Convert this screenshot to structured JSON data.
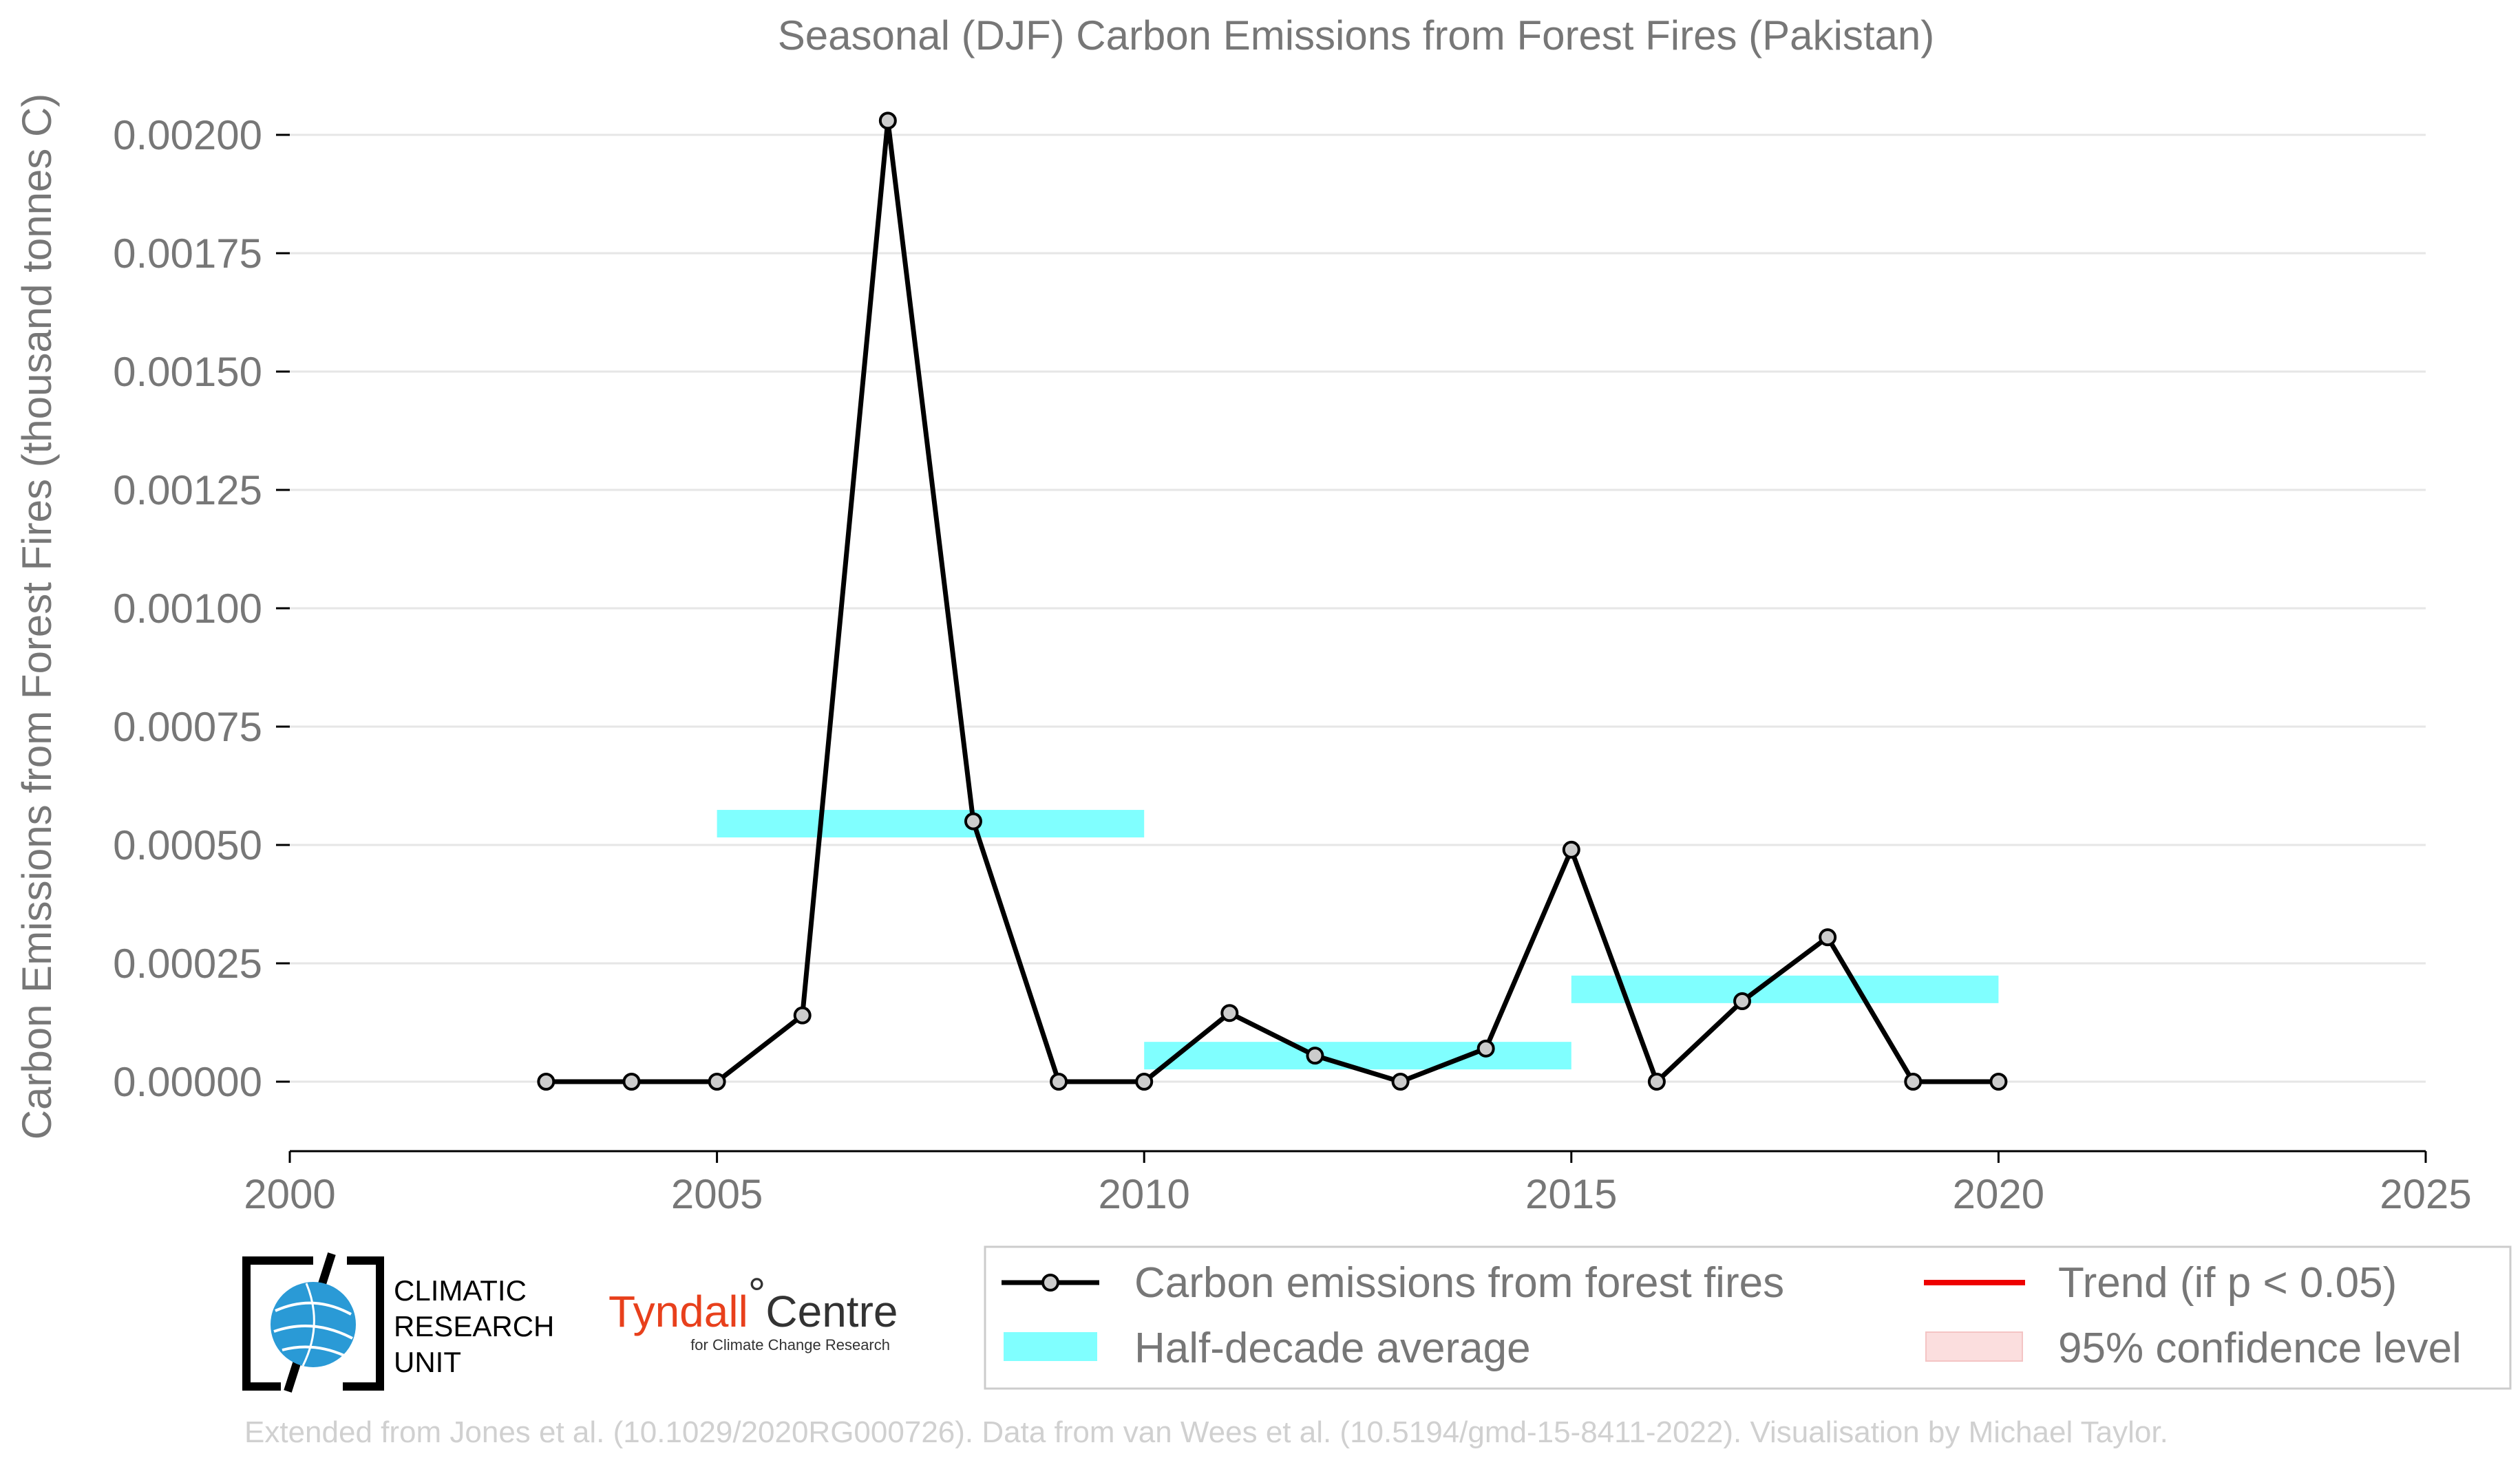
{
  "chart_data": {
    "type": "line",
    "title": "Seasonal (DJF) Carbon Emissions from Forest Fires (Pakistan)",
    "xlabel": "",
    "ylabel": "Carbon Emissions from Forest Fires (thousand tonnes C)",
    "xlim": [
      2000,
      2025
    ],
    "ylim": [
      -0.00016,
      0.00204
    ],
    "xticks": [
      2000,
      2005,
      2010,
      2015,
      2020,
      2025
    ],
    "xtick_labels": [
      "2000",
      "2005",
      "2010",
      "2015",
      "2020",
      "2025"
    ],
    "yticks": [
      0.0,
      0.00025,
      0.0005,
      0.00075,
      0.001,
      0.00125,
      0.0015,
      0.00175,
      0.002
    ],
    "ytick_labels": [
      "0.00000",
      "0.00025",
      "0.00050",
      "0.00075",
      "0.00100",
      "0.00125",
      "0.00150",
      "0.00175",
      "0.00200"
    ],
    "grid": "horizontal",
    "series": [
      {
        "name": "Carbon emissions from forest fires",
        "x": [
          2003,
          2004,
          2005,
          2006,
          2007,
          2008,
          2009,
          2010,
          2011,
          2012,
          2013,
          2014,
          2015,
          2016,
          2017,
          2018,
          2019,
          2020
        ],
        "y": [
          0.0,
          0.0,
          0.0,
          0.00014,
          0.00203,
          0.00055,
          0.0,
          0.0,
          0.000145,
          5.5e-05,
          0.0,
          7e-05,
          0.00049,
          0.0,
          0.00017,
          0.000305,
          0.0,
          0.0
        ],
        "color": "#000000",
        "marker_fill": "#cccccc"
      }
    ],
    "half_decade_averages": [
      {
        "x_start": 2005,
        "x_end": 2010,
        "value": 0.000545
      },
      {
        "x_start": 2010,
        "x_end": 2015,
        "value": 5.5e-05
      },
      {
        "x_start": 2015,
        "x_end": 2020,
        "value": 0.000195
      }
    ],
    "half_decade_color": "#80ffff",
    "legend": {
      "placement": "bottom-right",
      "entries": [
        {
          "label": "Carbon emissions from forest fires",
          "kind": "line-marker",
          "color": "#000000"
        },
        {
          "label": "Trend (if p < 0.05)",
          "kind": "line",
          "color": "#ee0000"
        },
        {
          "label": "Half-decade average",
          "kind": "patch",
          "color": "#80ffff"
        },
        {
          "label": "95% confidence level",
          "kind": "patch",
          "color": "#fbdede"
        }
      ]
    }
  },
  "logos": {
    "cru": {
      "lines": [
        "CLIMATIC",
        "RESEARCH",
        "UNIT"
      ]
    },
    "tyndall": {
      "main": "Tyndall",
      "degree": "°",
      "centre": "Centre",
      "sub": "for Climate Change Research"
    }
  },
  "credit": "Extended from Jones et al. (10.1029/2020RG000726). Data from van Wees et al. (10.5194/gmd-15-8411-2022). Visualisation by Michael Taylor."
}
